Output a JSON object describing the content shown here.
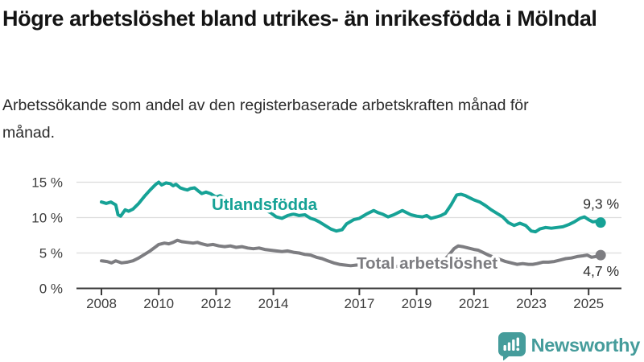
{
  "header": {
    "title": "Högre arbetslöshet bland utrikes- än inrikesfödda i Mölndal",
    "subtitle": "Arbetssökande som andel av den registerbaserade arbetskraften månad för månad."
  },
  "chart_data": {
    "type": "line",
    "title": "Högre arbetslöshet bland utrikes- än inrikesfödda i Mölndal",
    "subtitle": "Arbetssökande som andel av den registerbaserade arbetskraften månad för månad.",
    "xlabel": "",
    "ylabel": "",
    "x_unit": "decimal-year (monthly data)",
    "xlim": [
      2007.8,
      2026.1
    ],
    "ylim": [
      0,
      16.5
    ],
    "grid": true,
    "legend_position": "inline-series-labels",
    "yticks": [
      {
        "value": 0,
        "label": "0 %"
      },
      {
        "value": 5,
        "label": "5 %"
      },
      {
        "value": 10,
        "label": "10 %"
      },
      {
        "value": 15,
        "label": "15 %"
      }
    ],
    "xticks": [
      {
        "value": 2008,
        "label": "2008"
      },
      {
        "value": 2010,
        "label": "2010"
      },
      {
        "value": 2012,
        "label": "2012"
      },
      {
        "value": 2014,
        "label": "2014"
      },
      {
        "value": 2017,
        "label": "2017"
      },
      {
        "value": 2019,
        "label": "2019"
      },
      {
        "value": 2021,
        "label": "2021"
      },
      {
        "value": 2023,
        "label": "2023"
      },
      {
        "value": 2025,
        "label": "2025"
      }
    ],
    "colors": {
      "grid": "#dcdcdc",
      "axis": "#3a3a3a",
      "tick_label": "#3d3d3d",
      "value_label": "#2e2e2e"
    },
    "series": [
      {
        "name": "Utlandsfödda",
        "color": "#16a296",
        "end_label": "9,3 %",
        "end_value": 9.3,
        "points": [
          [
            2008.0,
            12.2
          ],
          [
            2008.17,
            12.0
          ],
          [
            2008.33,
            12.2
          ],
          [
            2008.5,
            11.8
          ],
          [
            2008.58,
            10.4
          ],
          [
            2008.67,
            10.2
          ],
          [
            2008.83,
            11.1
          ],
          [
            2008.95,
            10.9
          ],
          [
            2009.1,
            11.2
          ],
          [
            2009.3,
            12.0
          ],
          [
            2009.5,
            13.0
          ],
          [
            2009.7,
            13.9
          ],
          [
            2009.9,
            14.7
          ],
          [
            2010.0,
            15.0
          ],
          [
            2010.1,
            14.6
          ],
          [
            2010.25,
            14.9
          ],
          [
            2010.4,
            14.8
          ],
          [
            2010.5,
            14.5
          ],
          [
            2010.6,
            14.7
          ],
          [
            2010.75,
            14.2
          ],
          [
            2010.9,
            14.0
          ],
          [
            2011.0,
            13.9
          ],
          [
            2011.1,
            14.1
          ],
          [
            2011.25,
            14.2
          ],
          [
            2011.4,
            13.7
          ],
          [
            2011.5,
            13.4
          ],
          [
            2011.65,
            13.6
          ],
          [
            2011.8,
            13.4
          ],
          [
            2012.0,
            12.9
          ],
          [
            2012.15,
            13.1
          ],
          [
            2012.3,
            12.7
          ],
          [
            2012.5,
            12.6
          ],
          [
            2012.7,
            12.4
          ],
          [
            2012.9,
            12.2
          ],
          [
            2013.1,
            12.0
          ],
          [
            2013.3,
            11.7
          ],
          [
            2013.5,
            11.4
          ],
          [
            2013.7,
            11.1
          ],
          [
            2013.9,
            10.7
          ],
          [
            2014.1,
            10.1
          ],
          [
            2014.3,
            9.9
          ],
          [
            2014.5,
            10.3
          ],
          [
            2014.7,
            10.5
          ],
          [
            2014.9,
            10.3
          ],
          [
            2015.1,
            10.4
          ],
          [
            2015.3,
            9.9
          ],
          [
            2015.45,
            9.7
          ],
          [
            2015.6,
            9.4
          ],
          [
            2015.8,
            8.9
          ],
          [
            2016.0,
            8.4
          ],
          [
            2016.2,
            8.1
          ],
          [
            2016.4,
            8.3
          ],
          [
            2016.55,
            9.1
          ],
          [
            2016.8,
            9.7
          ],
          [
            2017.0,
            9.9
          ],
          [
            2017.25,
            10.5
          ],
          [
            2017.5,
            11.0
          ],
          [
            2017.65,
            10.7
          ],
          [
            2017.8,
            10.5
          ],
          [
            2018.0,
            10.1
          ],
          [
            2018.2,
            10.4
          ],
          [
            2018.35,
            10.7
          ],
          [
            2018.5,
            11.0
          ],
          [
            2018.65,
            10.7
          ],
          [
            2018.8,
            10.4
          ],
          [
            2019.0,
            10.2
          ],
          [
            2019.2,
            10.1
          ],
          [
            2019.35,
            10.3
          ],
          [
            2019.5,
            9.9
          ],
          [
            2019.7,
            10.1
          ],
          [
            2019.85,
            10.3
          ],
          [
            2020.0,
            10.6
          ],
          [
            2020.2,
            11.8
          ],
          [
            2020.4,
            13.2
          ],
          [
            2020.55,
            13.3
          ],
          [
            2020.7,
            13.1
          ],
          [
            2020.85,
            12.8
          ],
          [
            2021.0,
            12.5
          ],
          [
            2021.2,
            12.2
          ],
          [
            2021.4,
            11.7
          ],
          [
            2021.6,
            11.1
          ],
          [
            2021.8,
            10.6
          ],
          [
            2022.0,
            10.1
          ],
          [
            2022.2,
            9.3
          ],
          [
            2022.4,
            8.9
          ],
          [
            2022.6,
            9.2
          ],
          [
            2022.8,
            8.9
          ],
          [
            2023.0,
            8.1
          ],
          [
            2023.15,
            8.0
          ],
          [
            2023.3,
            8.4
          ],
          [
            2023.5,
            8.6
          ],
          [
            2023.7,
            8.5
          ],
          [
            2023.9,
            8.6
          ],
          [
            2024.1,
            8.7
          ],
          [
            2024.3,
            9.0
          ],
          [
            2024.5,
            9.4
          ],
          [
            2024.7,
            9.9
          ],
          [
            2024.85,
            10.1
          ],
          [
            2025.0,
            9.7
          ],
          [
            2025.15,
            9.4
          ],
          [
            2025.3,
            9.5
          ],
          [
            2025.42,
            9.3
          ]
        ]
      },
      {
        "name": "Total arbetslöshet",
        "color": "#7d7d81",
        "end_label": "4,7 %",
        "end_value": 4.7,
        "points": [
          [
            2008.0,
            3.9
          ],
          [
            2008.2,
            3.8
          ],
          [
            2008.35,
            3.6
          ],
          [
            2008.5,
            3.9
          ],
          [
            2008.7,
            3.6
          ],
          [
            2008.9,
            3.7
          ],
          [
            2009.1,
            3.9
          ],
          [
            2009.3,
            4.3
          ],
          [
            2009.5,
            4.8
          ],
          [
            2009.7,
            5.3
          ],
          [
            2009.9,
            5.9
          ],
          [
            2010.0,
            6.2
          ],
          [
            2010.2,
            6.4
          ],
          [
            2010.35,
            6.3
          ],
          [
            2010.5,
            6.5
          ],
          [
            2010.65,
            6.8
          ],
          [
            2010.8,
            6.6
          ],
          [
            2011.0,
            6.5
          ],
          [
            2011.2,
            6.4
          ],
          [
            2011.35,
            6.5
          ],
          [
            2011.5,
            6.3
          ],
          [
            2011.7,
            6.1
          ],
          [
            2011.9,
            6.2
          ],
          [
            2012.1,
            6.0
          ],
          [
            2012.3,
            5.9
          ],
          [
            2012.5,
            6.0
          ],
          [
            2012.7,
            5.8
          ],
          [
            2012.9,
            5.9
          ],
          [
            2013.1,
            5.7
          ],
          [
            2013.3,
            5.6
          ],
          [
            2013.5,
            5.7
          ],
          [
            2013.7,
            5.5
          ],
          [
            2013.9,
            5.4
          ],
          [
            2014.1,
            5.3
          ],
          [
            2014.3,
            5.2
          ],
          [
            2014.5,
            5.3
          ],
          [
            2014.7,
            5.1
          ],
          [
            2014.9,
            5.0
          ],
          [
            2015.1,
            4.8
          ],
          [
            2015.3,
            4.7
          ],
          [
            2015.5,
            4.4
          ],
          [
            2015.7,
            4.2
          ],
          [
            2015.9,
            3.9
          ],
          [
            2016.1,
            3.6
          ],
          [
            2016.3,
            3.4
          ],
          [
            2016.5,
            3.3
          ],
          [
            2016.7,
            3.2
          ],
          [
            2016.9,
            3.3
          ],
          [
            2017.1,
            3.3
          ],
          [
            2017.3,
            3.2
          ],
          [
            2017.5,
            3.3
          ],
          [
            2017.7,
            3.2
          ],
          [
            2017.9,
            3.1
          ],
          [
            2018.1,
            3.2
          ],
          [
            2018.3,
            3.1
          ],
          [
            2018.5,
            3.2
          ],
          [
            2018.7,
            3.1
          ],
          [
            2018.9,
            3.2
          ],
          [
            2019.1,
            3.3
          ],
          [
            2019.3,
            3.4
          ],
          [
            2019.5,
            3.5
          ],
          [
            2019.7,
            3.6
          ],
          [
            2019.9,
            3.8
          ],
          [
            2020.1,
            4.6
          ],
          [
            2020.3,
            5.6
          ],
          [
            2020.45,
            6.0
          ],
          [
            2020.6,
            5.9
          ],
          [
            2020.8,
            5.7
          ],
          [
            2021.0,
            5.5
          ],
          [
            2021.15,
            5.4
          ],
          [
            2021.3,
            5.1
          ],
          [
            2021.5,
            4.7
          ],
          [
            2021.7,
            4.4
          ],
          [
            2021.9,
            4.1
          ],
          [
            2022.1,
            3.8
          ],
          [
            2022.3,
            3.6
          ],
          [
            2022.5,
            3.4
          ],
          [
            2022.7,
            3.5
          ],
          [
            2022.9,
            3.4
          ],
          [
            2023.05,
            3.4
          ],
          [
            2023.2,
            3.5
          ],
          [
            2023.4,
            3.7
          ],
          [
            2023.6,
            3.7
          ],
          [
            2023.8,
            3.8
          ],
          [
            2024.0,
            4.0
          ],
          [
            2024.2,
            4.2
          ],
          [
            2024.4,
            4.3
          ],
          [
            2024.6,
            4.5
          ],
          [
            2024.8,
            4.6
          ],
          [
            2024.95,
            4.7
          ],
          [
            2025.1,
            4.4
          ],
          [
            2025.25,
            4.5
          ],
          [
            2025.42,
            4.7
          ]
        ]
      }
    ]
  },
  "footer": {
    "brand_label": "Newsworthy",
    "brand_color": "#459c9b",
    "icon": "newsworthy-speech-bubble-bar-chart-icon"
  }
}
